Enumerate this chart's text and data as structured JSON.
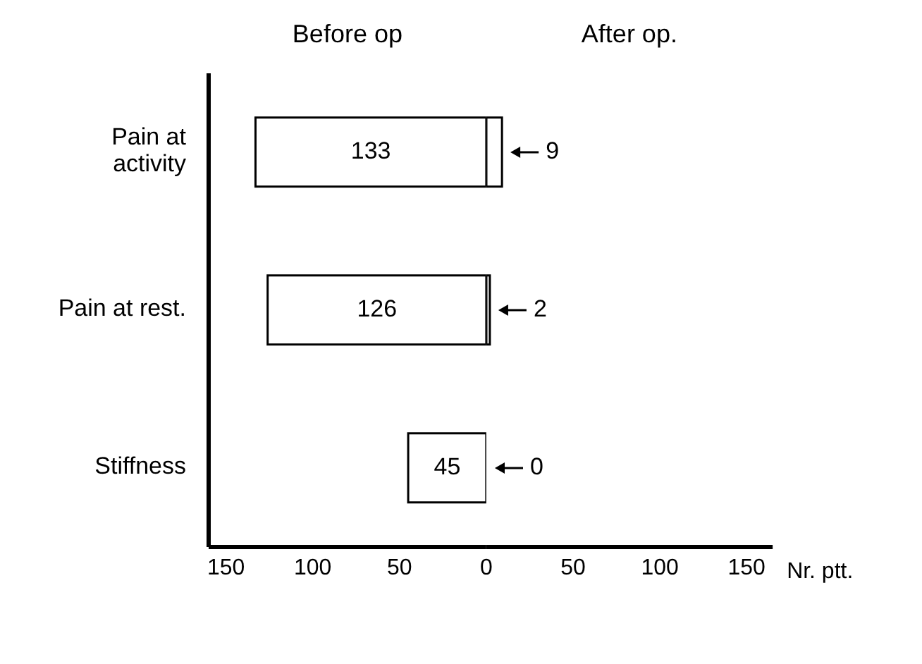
{
  "chart_data": [
    {
      "type": "bar",
      "orientation": "horizontal",
      "categories": [
        "Pain at activity",
        "Pain at rest.",
        "Stiffness"
      ],
      "series": [
        {
          "name": "Before op",
          "color": "#ffffff",
          "values": [
            133,
            126,
            45
          ],
          "value_labels": [
            "133",
            "126",
            "45"
          ]
        }
      ],
      "xlim": [
        160,
        0
      ],
      "xticks": [
        150,
        100,
        50,
        0
      ]
    },
    {
      "type": "bar",
      "orientation": "horizontal",
      "categories": [
        null,
        null,
        null
      ],
      "series": [
        {
          "name": "After op.",
          "color": "#ffffff",
          "values": [
            9,
            2,
            0
          ],
          "value_labels": [
            "9",
            "2",
            "0"
          ]
        }
      ],
      "xlim": [
        0,
        165
      ],
      "xticks": [
        50,
        100,
        150
      ],
      "xlabel": "Nr. ptt.",
      "tick_labels": "x"
    }
  ]
}
